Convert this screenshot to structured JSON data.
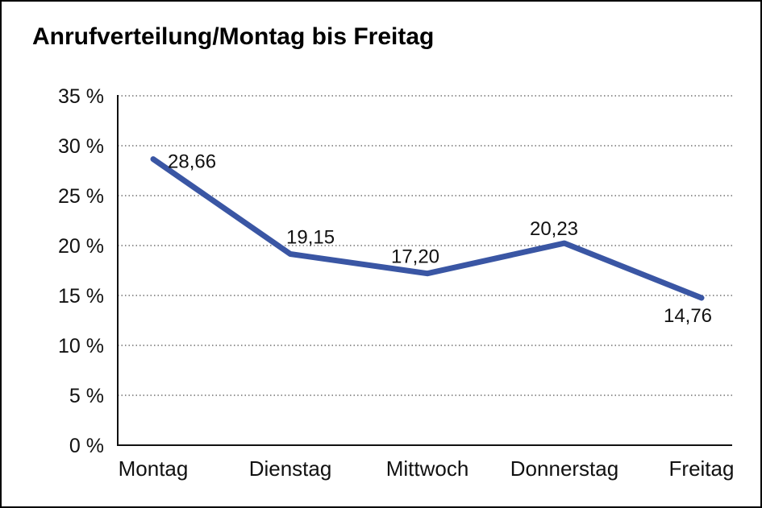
{
  "title": "Anrufverteilung/Montag bis Freitag",
  "chart_data": {
    "type": "line",
    "title": "Anrufverteilung/Montag bis Freitag",
    "categories": [
      "Montag",
      "Dienstag",
      "Mittwoch",
      "Donnerstag",
      "Freitag"
    ],
    "series": [
      {
        "name": "Anrufverteilung",
        "values": [
          28.66,
          19.15,
          17.2,
          20.23,
          14.76
        ],
        "point_labels": [
          "28,66",
          "19,15",
          "17,20",
          "20,23",
          "14,76"
        ]
      }
    ],
    "xlabel": "",
    "ylabel": "",
    "ylim": [
      0,
      35
    ],
    "y_tick_step": 5,
    "y_ticks": [
      0,
      5,
      10,
      15,
      20,
      25,
      30,
      35
    ],
    "y_tick_labels": [
      "0 %",
      "5 %",
      "10 %",
      "15 %",
      "20 %",
      "25 %",
      "30 %",
      "35 %"
    ],
    "grid": "horizontal-dotted",
    "legend": "none",
    "colors": {
      "line": "#3A56A4",
      "text": "#111111",
      "grid": "#555555",
      "axis": "#111111",
      "background": "#ffffff",
      "border": "#000000"
    }
  }
}
